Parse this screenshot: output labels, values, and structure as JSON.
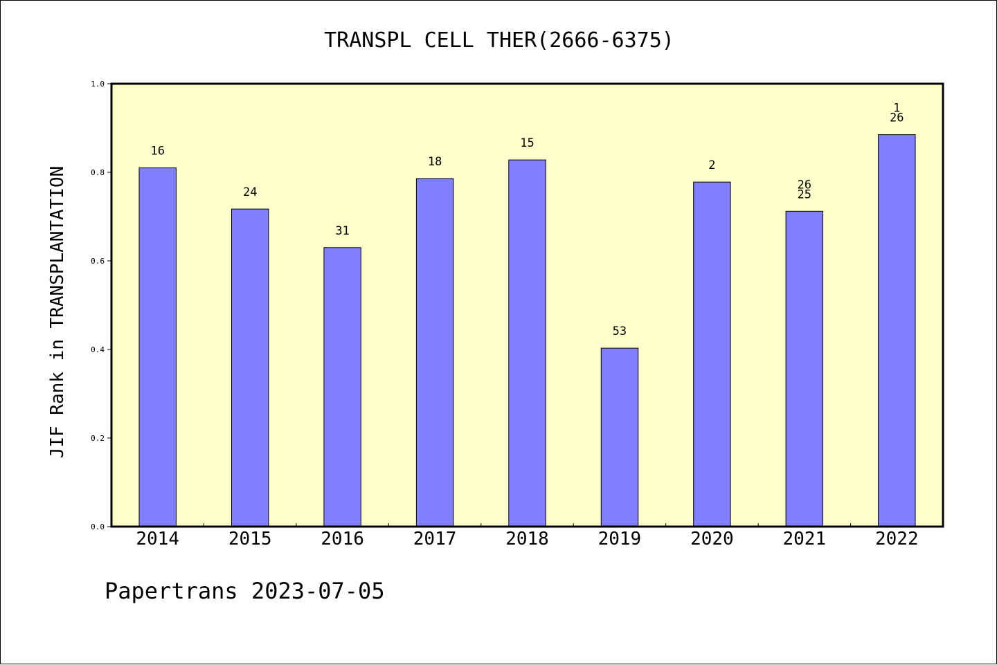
{
  "chart_data": {
    "type": "bar",
    "title": "TRANSPL CELL THER(2666-6375)",
    "ylabel": "JIF Rank in TRANSPLANTATION",
    "xlabel": "",
    "footer": "Papertrans 2023-07-05",
    "ylim": [
      0,
      1.0
    ],
    "yticks": [
      "0.0",
      "0.2",
      "0.4",
      "0.6",
      "0.8",
      "1.0"
    ],
    "categories": [
      "2014",
      "2015",
      "2016",
      "2017",
      "2018",
      "2019",
      "2020",
      "2021",
      "2022"
    ],
    "values": [
      0.81,
      0.717,
      0.63,
      0.786,
      0.828,
      0.403,
      0.778,
      0.712,
      0.885
    ],
    "labels": [
      [
        "16"
      ],
      [
        "24"
      ],
      [
        "31"
      ],
      [
        "18"
      ],
      [
        "15"
      ],
      [
        "53"
      ],
      [
        "2"
      ],
      [
        "26",
        "25"
      ],
      [
        "1",
        "26"
      ]
    ],
    "grid": false,
    "colors": {
      "bar_fill": "#8080ff",
      "plot_background": "#ffffcc",
      "axis": "#000000"
    }
  }
}
